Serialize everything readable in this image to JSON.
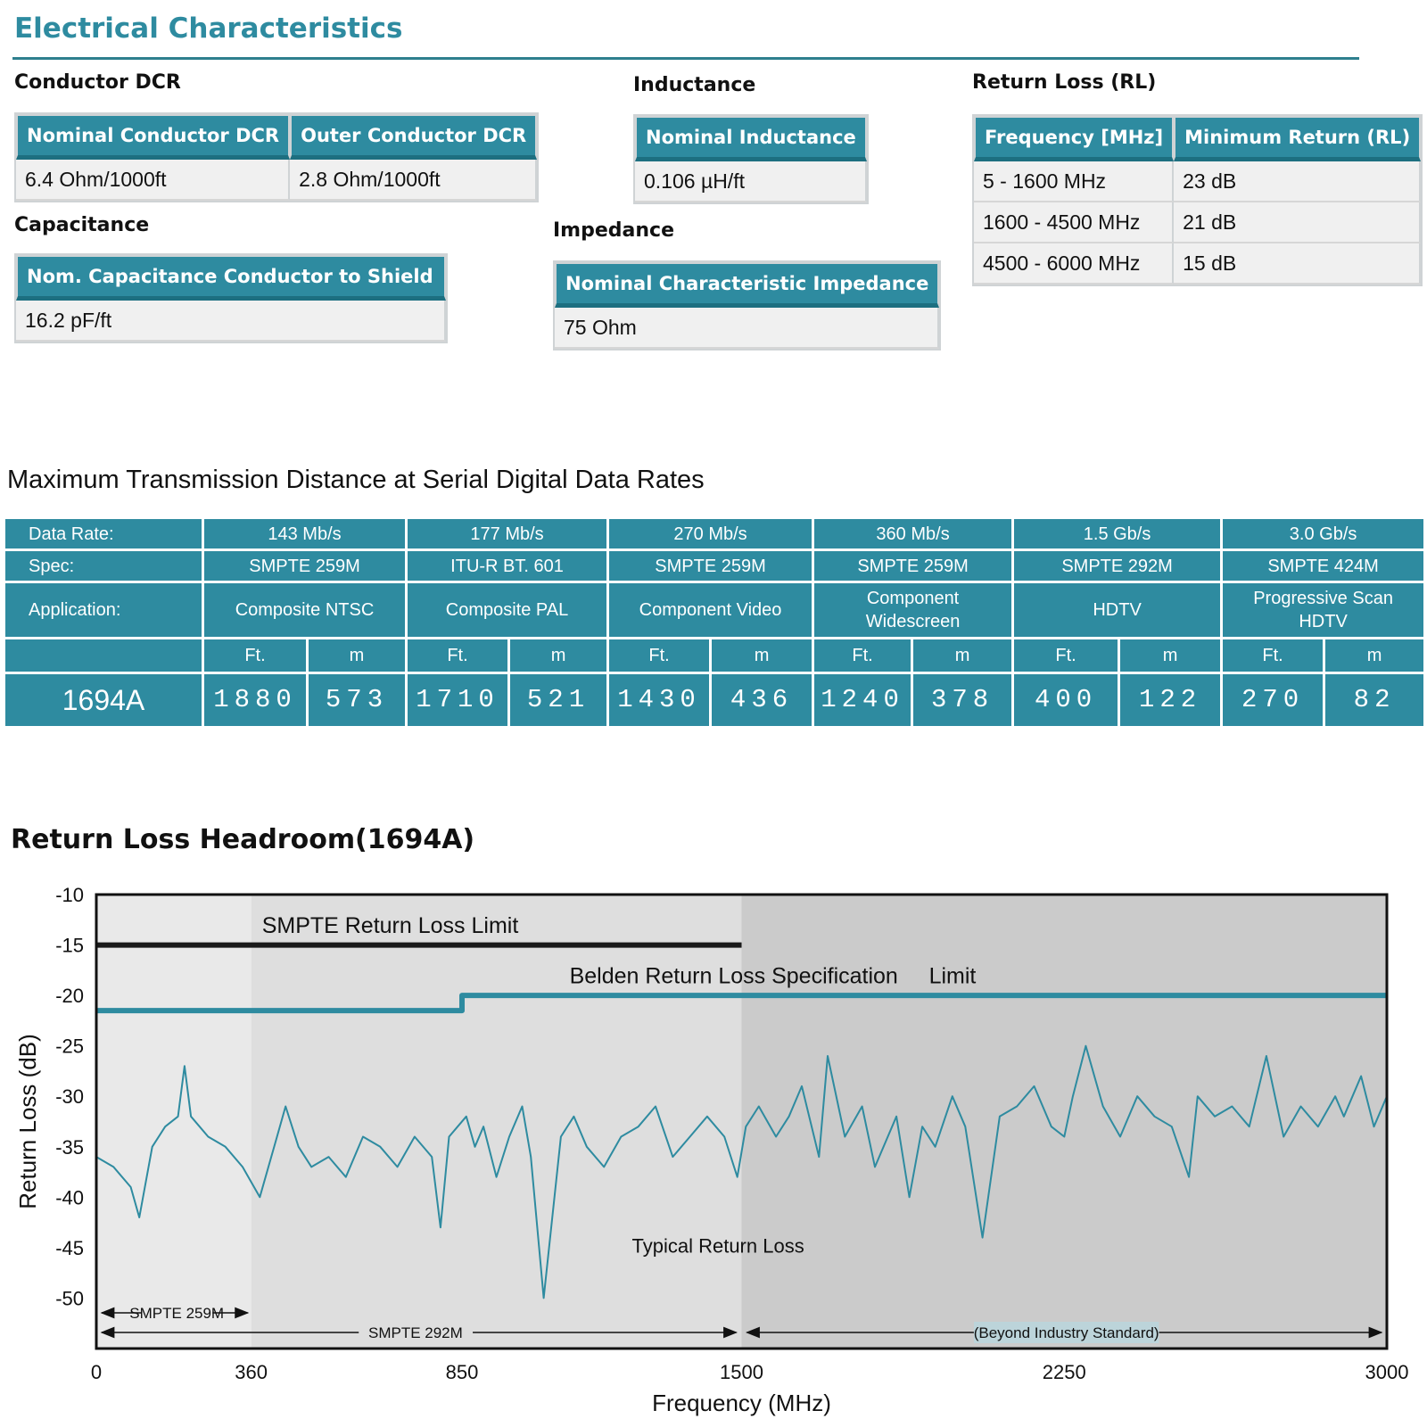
{
  "page_title": "Electrical Characteristics",
  "conductor_dcr": {
    "label": "Conductor DCR",
    "headers": [
      "Nominal Conductor DCR",
      "Outer Conductor DCR"
    ],
    "values": [
      "6.4 Ohm/1000ft",
      "2.8 Ohm/1000ft"
    ]
  },
  "inductance": {
    "label": "Inductance",
    "header": "Nominal Inductance",
    "value": "0.106 µH/ft"
  },
  "return_loss": {
    "label": "Return Loss (RL)",
    "headers": [
      "Frequency [MHz]",
      "Minimum Return (RL)"
    ],
    "rows": [
      [
        "5 - 1600 MHz",
        "23 dB"
      ],
      [
        "1600 - 4500 MHz",
        "21 dB"
      ],
      [
        "4500 - 6000 MHz",
        "15 dB"
      ]
    ]
  },
  "capacitance": {
    "label": "Capacitance",
    "header": "Nom. Capacitance Conductor to Shield",
    "value": "16.2 pF/ft"
  },
  "impedance": {
    "label": "Impedance",
    "header": "Nominal Characteristic Impedance",
    "value": "75 Ohm"
  },
  "transmission": {
    "title": "Maximum Transmission Distance at Serial Digital Data Rates",
    "row_labels": [
      "Data Rate:",
      "Spec:",
      "Application:"
    ],
    "data_rates": [
      "143 Mb/s",
      "177 Mb/s",
      "270 Mb/s",
      "360 Mb/s",
      "1.5 Gb/s",
      "3.0 Gb/s"
    ],
    "specs": [
      "SMPTE 259M",
      "ITU-R BT. 601",
      "SMPTE 259M",
      "SMPTE 259M",
      "SMPTE 292M",
      "SMPTE 424M"
    ],
    "applications": [
      "Composite NTSC",
      "Composite PAL",
      "Component Video",
      "Component Widescreen",
      "HDTV",
      "Progressive Scan HDTV"
    ],
    "unit_ft": "Ft.",
    "unit_m": "m",
    "model": "1694A",
    "distances": [
      [
        "1880",
        "573"
      ],
      [
        "1710",
        "521"
      ],
      [
        "1430",
        "436"
      ],
      [
        "1240",
        "378"
      ],
      [
        "400",
        "122"
      ],
      [
        "270",
        "82"
      ]
    ]
  },
  "chart_title": "Return Loss Headroom",
  "chart_subtitle": "(1694A)",
  "chart_data": {
    "type": "line",
    "xlabel": "Frequency (MHz)",
    "ylabel": "Return Loss (dB)",
    "xlim": [
      0,
      3000
    ],
    "ylim": [
      -55,
      -10
    ],
    "x_ticks": [
      "0",
      "360",
      "850",
      "1500",
      "2250",
      "3000"
    ],
    "y_ticks": [
      "-10",
      "-15",
      "-20",
      "-25",
      "-30",
      "-35",
      "-40",
      "-45",
      "-50"
    ],
    "grid": false,
    "colors": {
      "typical": "#2e8ba0",
      "belden": "#2e8ba0",
      "smpte": "#1a1a1a"
    },
    "annotations": {
      "smpte_limit": "SMPTE Return Loss  Limit",
      "belden_limit": "Belden Return Loss Specification     Limit",
      "typical": "Typical Return Loss",
      "range_259": "SMPTE 259M",
      "range_292": "SMPTE 292M",
      "range_beyond": "(Beyond Industry Standard)"
    },
    "series": [
      {
        "name": "SMPTE Return Loss Limit",
        "x": [
          0,
          1500
        ],
        "y": [
          -15,
          -15
        ]
      },
      {
        "name": "Belden Return Loss Specification Limit",
        "x": [
          0,
          850,
          850,
          3000
        ],
        "y": [
          -21.5,
          -21.5,
          -20,
          -20
        ]
      },
      {
        "name": "Typical Return Loss",
        "x": [
          0,
          40,
          80,
          100,
          130,
          160,
          190,
          205,
          220,
          260,
          300,
          340,
          380,
          420,
          440,
          470,
          500,
          540,
          580,
          620,
          660,
          700,
          740,
          780,
          800,
          820,
          860,
          880,
          900,
          930,
          960,
          990,
          1010,
          1040,
          1080,
          1110,
          1140,
          1180,
          1220,
          1260,
          1300,
          1340,
          1380,
          1420,
          1460,
          1490,
          1510,
          1540,
          1580,
          1610,
          1640,
          1680,
          1700,
          1740,
          1780,
          1810,
          1860,
          1890,
          1920,
          1950,
          1990,
          2020,
          2060,
          2100,
          2140,
          2180,
          2220,
          2250,
          2270,
          2300,
          2340,
          2380,
          2420,
          2460,
          2500,
          2540,
          2560,
          2600,
          2640,
          2680,
          2720,
          2760,
          2800,
          2840,
          2880,
          2900,
          2940,
          2970,
          3000
        ],
        "y": [
          -36,
          -37,
          -39,
          -42,
          -35,
          -33,
          -32,
          -27,
          -32,
          -34,
          -35,
          -37,
          -40,
          -34,
          -31,
          -35,
          -37,
          -36,
          -38,
          -34,
          -35,
          -37,
          -34,
          -36,
          -43,
          -34,
          -32,
          -35,
          -33,
          -38,
          -34,
          -31,
          -36,
          -50,
          -34,
          -32,
          -35,
          -37,
          -34,
          -33,
          -31,
          -36,
          -34,
          -32,
          -34,
          -38,
          -33,
          -31,
          -34,
          -32,
          -29,
          -36,
          -26,
          -34,
          -31,
          -37,
          -32,
          -40,
          -33,
          -35,
          -30,
          -33,
          -44,
          -32,
          -31,
          -29,
          -33,
          -34,
          -30,
          -25,
          -31,
          -34,
          -30,
          -32,
          -33,
          -38,
          -30,
          -32,
          -31,
          -33,
          -26,
          -34,
          -31,
          -33,
          -30,
          -32,
          -28,
          -33,
          -30
        ]
      }
    ]
  }
}
